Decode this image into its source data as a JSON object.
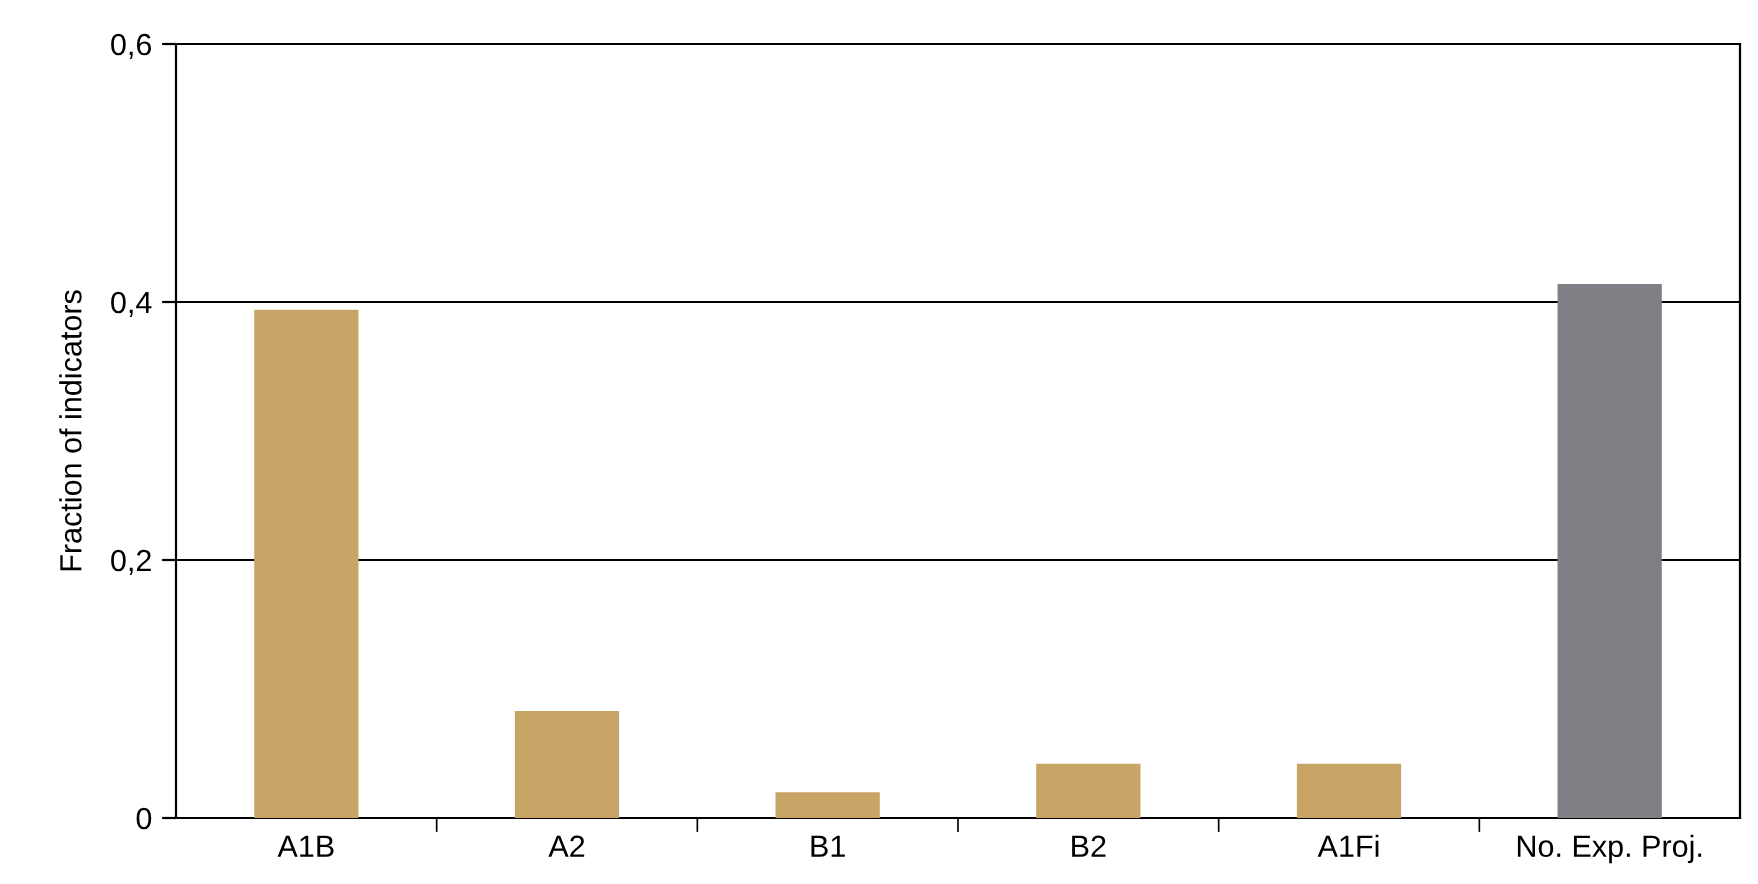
{
  "chart_data": {
    "type": "bar",
    "ylabel": "Fraction of indicators",
    "categories": [
      "A1B",
      "A2",
      "B1",
      "B2",
      "A1Fi",
      "No. Exp. Proj."
    ],
    "values": [
      0.394,
      0.083,
      0.02,
      0.042,
      0.042,
      0.414
    ],
    "colors": [
      "#c8a566",
      "#c8a566",
      "#c8a566",
      "#c8a566",
      "#c8a566",
      "#7e8085"
    ],
    "ylim": [
      0,
      0.6
    ],
    "yticks": [
      {
        "value": 0,
        "label": "0"
      },
      {
        "value": 0.2,
        "label": "0,2"
      },
      {
        "value": 0.4,
        "label": "0,4"
      },
      {
        "value": 0.6,
        "label": "0,6"
      }
    ],
    "grid": "y",
    "legend": false
  }
}
